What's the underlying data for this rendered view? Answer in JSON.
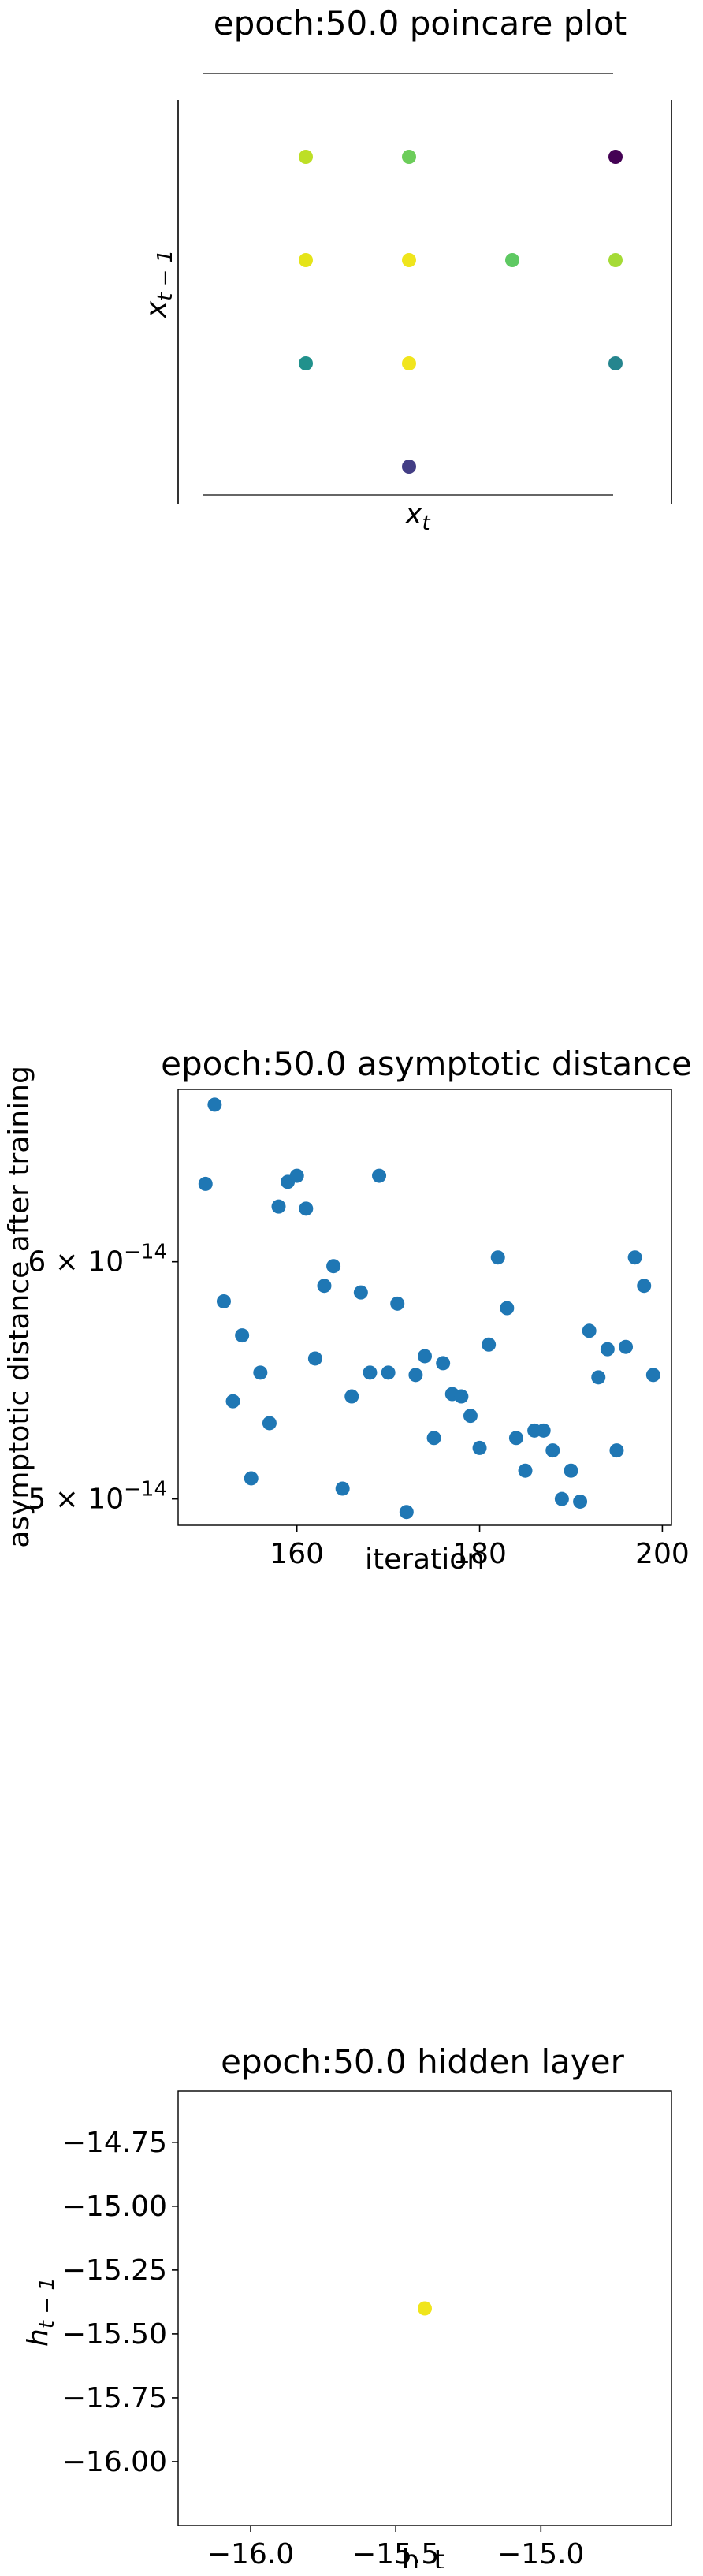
{
  "chart_data": [
    {
      "type": "scatter",
      "title": "epoch:50.0 poincare plot",
      "xlabel_base": "x",
      "xlabel_sub": "t",
      "ylabel_base": "x",
      "ylabel_sub": "t − 1",
      "grid": false,
      "colormap": "viridis",
      "points": [
        {
          "x": 1,
          "y": 4,
          "color": "#bddf26"
        },
        {
          "x": 2,
          "y": 4,
          "color": "#6ccd5a"
        },
        {
          "x": 4,
          "y": 4,
          "color": "#440154"
        },
        {
          "x": 1,
          "y": 3,
          "color": "#e5e419"
        },
        {
          "x": 2,
          "y": 3,
          "color": "#efe51c"
        },
        {
          "x": 3,
          "y": 3,
          "color": "#5ec962"
        },
        {
          "x": 4,
          "y": 3,
          "color": "#a5db36"
        },
        {
          "x": 1,
          "y": 2,
          "color": "#21918c"
        },
        {
          "x": 2,
          "y": 2,
          "color": "#f1e51d"
        },
        {
          "x": 4,
          "y": 2,
          "color": "#25858e"
        },
        {
          "x": 2,
          "y": 1,
          "color": "#433e85"
        }
      ]
    },
    {
      "type": "scatter",
      "title": "epoch:50.0 asymptotic distance",
      "xlabel": "iteration",
      "ylabel": "asymptotic distance after training",
      "xlim": [
        147,
        201
      ],
      "ylim": [
        4.9e-14,
        6.85e-14
      ],
      "yscale": "log",
      "xticks": [
        160,
        180,
        200
      ],
      "yticks": [
        {
          "value": 6e-14,
          "mantissa": "6 × 10",
          "exponent": "−14"
        },
        {
          "value": 5e-14,
          "mantissa": "5 × 10",
          "exponent": "−14"
        }
      ],
      "color": "#1f77b4",
      "grid": false,
      "x": [
        150,
        151,
        152,
        153,
        154,
        155,
        156,
        157,
        158,
        159,
        160,
        161,
        162,
        163,
        164,
        165,
        166,
        167,
        168,
        169,
        170,
        171,
        172,
        173,
        174,
        175,
        176,
        177,
        178,
        179,
        180,
        181,
        182,
        183,
        184,
        185,
        186,
        187,
        188,
        189,
        190,
        191,
        192,
        193,
        194,
        195,
        196,
        197,
        198,
        199
      ],
      "y": [
        6.37e-14,
        6.77e-14,
        5.82e-14,
        5.39e-14,
        5.67e-14,
        5.08e-14,
        5.51e-14,
        5.3e-14,
        6.26e-14,
        6.38e-14,
        6.41e-14,
        6.25e-14,
        5.57e-14,
        5.89e-14,
        5.98e-14,
        5.04e-14,
        5.41e-14,
        5.86e-14,
        5.51e-14,
        6.41e-14,
        5.51e-14,
        5.81e-14,
        4.95e-14,
        5.5e-14,
        5.58e-14,
        5.24e-14,
        5.55e-14,
        5.42e-14,
        5.41e-14,
        5.33e-14,
        5.2e-14,
        5.63e-14,
        6.02e-14,
        5.79e-14,
        5.24e-14,
        5.11e-14,
        5.27e-14,
        5.27e-14,
        5.19e-14,
        5e-14,
        5.11e-14,
        4.99e-14,
        5.69e-14,
        5.49e-14,
        5.61e-14,
        5.19e-14,
        5.62e-14,
        6.02e-14,
        5.89e-14,
        5.5e-14
      ]
    },
    {
      "type": "scatter",
      "title": "epoch:50.0 hidden layer",
      "xlabel": "h_t",
      "ylabel_base": "h",
      "ylabel_sub": "t − 1",
      "xlim": [
        -16.25,
        -14.55
      ],
      "ylim": [
        -16.25,
        -14.55
      ],
      "xticks": [
        -16.0,
        -15.5,
        -15.0
      ],
      "yticks": [
        -14.75,
        -15.0,
        -15.25,
        -15.5,
        -15.75,
        -16.0
      ],
      "grid": false,
      "points": [
        {
          "x": -15.4,
          "y": -15.4,
          "color": "#f0e51c"
        }
      ]
    }
  ]
}
